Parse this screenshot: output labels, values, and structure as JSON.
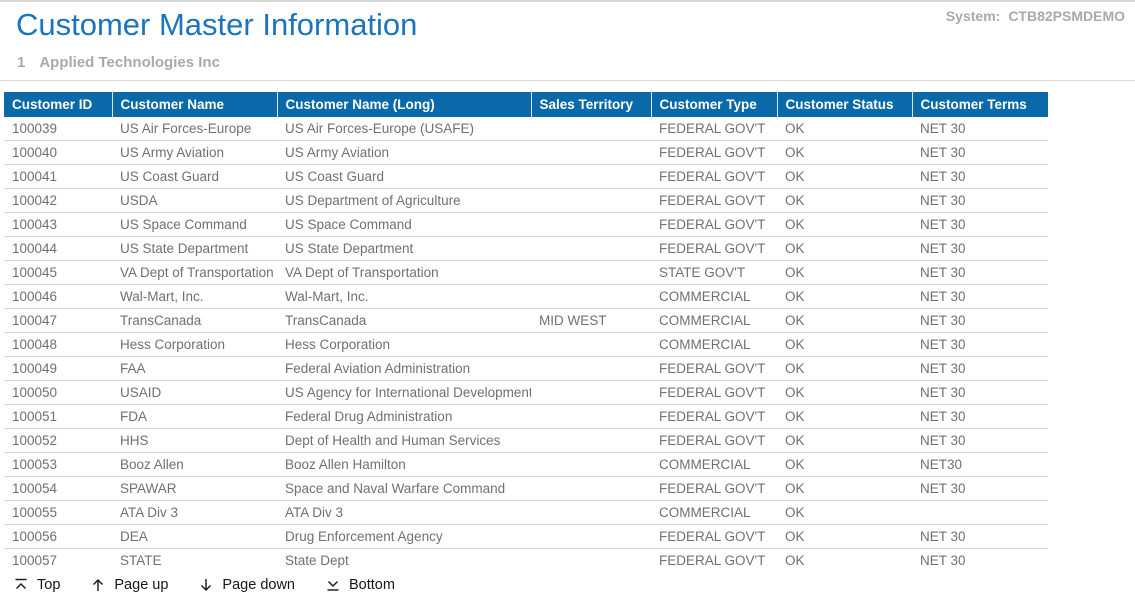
{
  "page": {
    "title": "Customer Master Information",
    "system_label": "System:",
    "system_value": "CTB82PSMDEMO",
    "record_number": "1",
    "record_name": "Applied Technologies Inc"
  },
  "table": {
    "columns": [
      "Customer ID",
      "Customer Name",
      "Customer Name (Long)",
      "Sales Territory",
      "Customer Type",
      "Customer Status",
      "Customer Terms"
    ],
    "rows": [
      [
        "100039",
        "US Air Forces-Europe",
        "US Air Forces-Europe (USAFE)",
        "",
        "FEDERAL GOV'T",
        "OK",
        "NET 30"
      ],
      [
        "100040",
        "US Army Aviation",
        "US Army Aviation",
        "",
        "FEDERAL GOV'T",
        "OK",
        "NET 30"
      ],
      [
        "100041",
        "US Coast Guard",
        "US Coast Guard",
        "",
        "FEDERAL GOV'T",
        "OK",
        "NET 30"
      ],
      [
        "100042",
        "USDA",
        "US Department of Agriculture",
        "",
        "FEDERAL GOV'T",
        "OK",
        "NET 30"
      ],
      [
        "100043",
        "US Space Command",
        "US Space Command",
        "",
        "FEDERAL GOV'T",
        "OK",
        "NET 30"
      ],
      [
        "100044",
        "US State Department",
        "US State Department",
        "",
        "FEDERAL GOV'T",
        "OK",
        "NET 30"
      ],
      [
        "100045",
        "VA Dept of Transportation",
        "VA Dept of Transportation",
        "",
        "STATE GOV'T",
        "OK",
        "NET 30"
      ],
      [
        "100046",
        "Wal-Mart, Inc.",
        "Wal-Mart, Inc.",
        "",
        "COMMERCIAL",
        "OK",
        "NET 30"
      ],
      [
        "100047",
        "TransCanada",
        "TransCanada",
        "MID WEST",
        "COMMERCIAL",
        "OK",
        "NET 30"
      ],
      [
        "100048",
        "Hess Corporation",
        "Hess Corporation",
        "",
        "COMMERCIAL",
        "OK",
        "NET 30"
      ],
      [
        "100049",
        "FAA",
        "Federal Aviation Administration",
        "",
        "FEDERAL GOV'T",
        "OK",
        "NET 30"
      ],
      [
        "100050",
        "USAID",
        "US Agency for International Development",
        "",
        "FEDERAL GOV'T",
        "OK",
        "NET 30"
      ],
      [
        "100051",
        "FDA",
        "Federal Drug Administration",
        "",
        "FEDERAL GOV'T",
        "OK",
        "NET 30"
      ],
      [
        "100052",
        "HHS",
        "Dept of Health and Human Services",
        "",
        "FEDERAL GOV'T",
        "OK",
        "NET 30"
      ],
      [
        "100053",
        "Booz Allen",
        "Booz Allen Hamilton",
        "",
        "COMMERCIAL",
        "OK",
        "NET30"
      ],
      [
        "100054",
        "SPAWAR",
        "Space and Naval Warfare Command",
        "",
        "FEDERAL GOV'T",
        "OK",
        "NET 30"
      ],
      [
        "100055",
        "ATA Div 3",
        "ATA Div 3",
        "",
        "COMMERCIAL",
        "OK",
        ""
      ],
      [
        "100056",
        "DEA",
        "Drug Enforcement Agency",
        "",
        "FEDERAL GOV'T",
        "OK",
        "NET 30"
      ],
      [
        "100057",
        "STATE",
        "State Dept",
        "",
        "FEDERAL GOV'T",
        "OK",
        "NET 30"
      ]
    ]
  },
  "toolbar": {
    "items": [
      {
        "icon": "top-icon",
        "label": "Top"
      },
      {
        "icon": "page-up-icon",
        "label": "Page up"
      },
      {
        "icon": "page-down-icon",
        "label": "Page down"
      },
      {
        "icon": "bottom-icon",
        "label": "Bottom"
      }
    ]
  },
  "colors": {
    "header_bg": "#0a69a8",
    "title_blue": "#1b74bc",
    "muted_gray": "#a9a9a9",
    "row_text": "#707070",
    "row_border": "#d0d0d0",
    "toolbar_text": "#161616"
  }
}
